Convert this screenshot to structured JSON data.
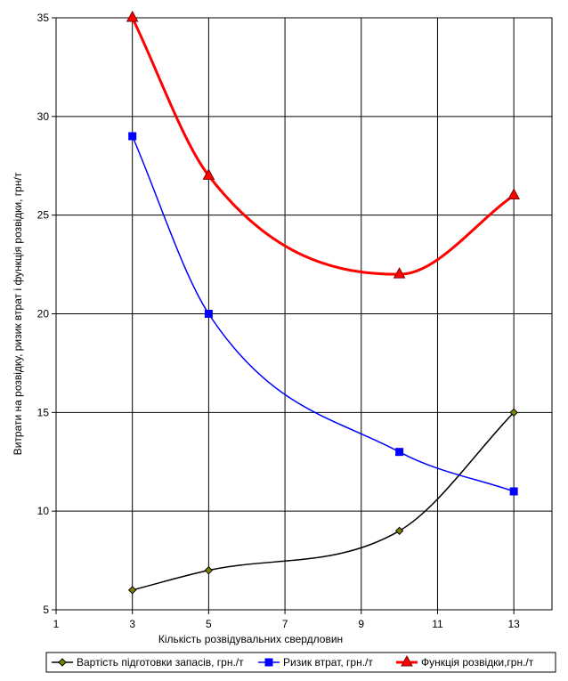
{
  "chart_data": {
    "type": "line",
    "title": "",
    "xlabel": "Кількість розвідувальних свердловин",
    "ylabel": "Витрати на розвідку, ризик втрат і функція розвідки, грн/т",
    "xlim": [
      1,
      14
    ],
    "ylim": [
      5,
      35
    ],
    "x_ticks": [
      1,
      3,
      5,
      7,
      9,
      11,
      13
    ],
    "y_ticks": [
      5,
      10,
      15,
      20,
      25,
      30,
      35
    ],
    "grid": true,
    "legend_position": "bottom",
    "series": [
      {
        "name": "Вартість підготовки запасів, грн./т",
        "color": "#000000",
        "marker": "diamond",
        "marker_fill": "#808000",
        "line_width": 1.5,
        "x": [
          3,
          5,
          10,
          13
        ],
        "y": [
          6,
          7,
          9,
          15
        ]
      },
      {
        "name": "Ризик втрат, грн./т",
        "color": "#0000ff",
        "marker": "square",
        "marker_fill": "#0000ff",
        "line_width": 1.5,
        "x": [
          3,
          5,
          10,
          13
        ],
        "y": [
          29,
          20,
          13,
          11
        ]
      },
      {
        "name": "Функція розвідки,грн./т",
        "color": "#ff0000",
        "marker": "triangle",
        "marker_fill": "#ff0000",
        "line_width": 3,
        "x": [
          3,
          5,
          10,
          13
        ],
        "y": [
          35,
          27,
          22,
          26
        ]
      }
    ]
  }
}
